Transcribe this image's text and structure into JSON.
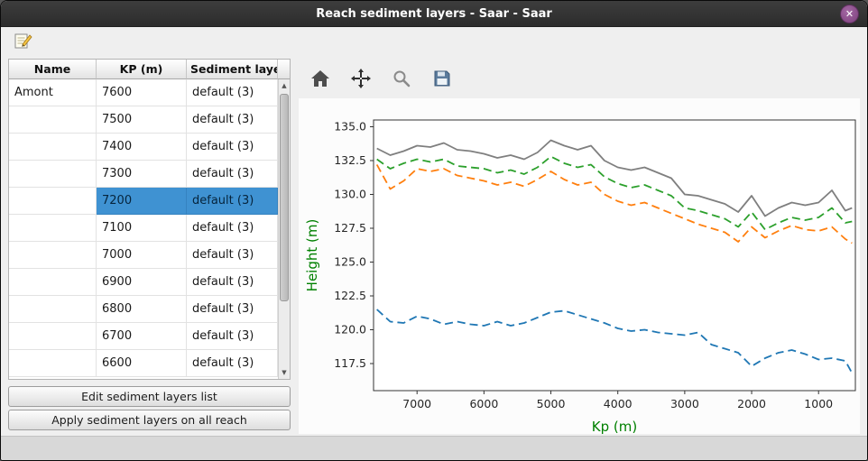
{
  "window": {
    "title": "Reach sediment layers - Saar - Saar",
    "close_glyph": "✕"
  },
  "icons": {
    "edit_icon": "compose-note",
    "home_icon": "house",
    "pan_icon": "four-way-arrows",
    "zoom_icon": "magnifier",
    "save_icon": "floppy-disk",
    "scroll_up_glyph": "▲",
    "scroll_down_glyph": "▼"
  },
  "table": {
    "columns": [
      "Name",
      "KP (m)",
      "Sediment layers"
    ],
    "selected_index": 4,
    "selection_color": "#3f92d2",
    "rows": [
      {
        "name": "Amont",
        "kp": "7600",
        "layers": "default (3)"
      },
      {
        "name": "",
        "kp": "7500",
        "layers": "default (3)"
      },
      {
        "name": "",
        "kp": "7400",
        "layers": "default (3)"
      },
      {
        "name": "",
        "kp": "7300",
        "layers": "default (3)"
      },
      {
        "name": "",
        "kp": "7200",
        "layers": "default (3)"
      },
      {
        "name": "",
        "kp": "7100",
        "layers": "default (3)"
      },
      {
        "name": "",
        "kp": "7000",
        "layers": "default (3)"
      },
      {
        "name": "",
        "kp": "6900",
        "layers": "default (3)"
      },
      {
        "name": "",
        "kp": "6800",
        "layers": "default (3)"
      },
      {
        "name": "",
        "kp": "6700",
        "layers": "default (3)"
      },
      {
        "name": "",
        "kp": "6600",
        "layers": "default (3)"
      }
    ]
  },
  "buttons": {
    "edit_list": "Edit sediment layers list",
    "apply_all": "Apply sediment layers on all reach"
  },
  "chart_data": {
    "type": "line",
    "title": "",
    "xlabel": "Kp (m)",
    "ylabel": "Height (m)",
    "axis_label_color": "#008000",
    "x_inverted": true,
    "xlim": [
      7650,
      450
    ],
    "ylim": [
      115.5,
      135.5
    ],
    "xticks": [
      7000,
      6000,
      5000,
      4000,
      3000,
      2000,
      1000
    ],
    "yticks": [
      117.5,
      120.0,
      122.5,
      125.0,
      127.5,
      130.0,
      132.5,
      135.0
    ],
    "grid": false,
    "legend": "none",
    "x": [
      7600,
      7400,
      7200,
      7000,
      6800,
      6600,
      6400,
      6200,
      6000,
      5800,
      5600,
      5400,
      5200,
      5000,
      4800,
      4600,
      4400,
      4200,
      4000,
      3800,
      3600,
      3400,
      3200,
      3000,
      2800,
      2600,
      2400,
      2200,
      2000,
      1800,
      1600,
      1400,
      1200,
      1000,
      800,
      600,
      500
    ],
    "series": [
      {
        "name": "series-1-top",
        "style": "solid",
        "color": "#7f7f7f",
        "values": [
          133.4,
          132.9,
          133.2,
          133.6,
          133.5,
          133.8,
          133.3,
          133.2,
          133.0,
          132.7,
          132.9,
          132.6,
          133.1,
          134.0,
          133.6,
          133.3,
          133.6,
          132.5,
          132.0,
          131.8,
          132.0,
          131.6,
          131.2,
          130.0,
          129.9,
          129.6,
          129.3,
          128.7,
          129.9,
          128.4,
          129.0,
          129.4,
          129.2,
          129.4,
          130.3,
          128.8,
          129.0
        ]
      },
      {
        "name": "series-2-green",
        "style": "dashed",
        "color": "#2ca02c",
        "values": [
          132.6,
          131.9,
          132.3,
          132.6,
          132.4,
          132.6,
          132.1,
          132.0,
          131.9,
          131.6,
          131.8,
          131.5,
          132.0,
          132.8,
          132.3,
          132.0,
          132.2,
          131.3,
          130.8,
          130.5,
          130.7,
          130.3,
          129.9,
          129.0,
          128.8,
          128.5,
          128.2,
          127.6,
          128.7,
          127.4,
          127.9,
          128.3,
          128.1,
          128.3,
          129.0,
          127.9,
          128.0
        ]
      },
      {
        "name": "series-3-orange",
        "style": "dashed",
        "color": "#ff7f0e",
        "values": [
          132.2,
          130.4,
          131.0,
          131.9,
          131.7,
          131.9,
          131.4,
          131.2,
          131.0,
          130.7,
          130.9,
          130.6,
          131.1,
          131.7,
          131.1,
          130.7,
          130.9,
          130.0,
          129.5,
          129.2,
          129.4,
          129.0,
          128.6,
          128.2,
          127.8,
          127.5,
          127.2,
          126.5,
          127.6,
          126.8,
          127.3,
          127.7,
          127.4,
          127.3,
          127.6,
          126.7,
          126.4
        ]
      },
      {
        "name": "series-4-blue",
        "style": "dashed",
        "color": "#1f77b4",
        "values": [
          121.5,
          120.6,
          120.5,
          121.0,
          120.8,
          120.4,
          120.6,
          120.4,
          120.3,
          120.6,
          120.3,
          120.5,
          120.9,
          121.3,
          121.4,
          121.1,
          120.8,
          120.5,
          120.1,
          119.9,
          120.0,
          119.8,
          119.7,
          119.6,
          119.8,
          118.9,
          118.6,
          118.3,
          117.3,
          117.9,
          118.3,
          118.5,
          118.2,
          117.8,
          117.9,
          117.7,
          116.8
        ]
      }
    ]
  }
}
